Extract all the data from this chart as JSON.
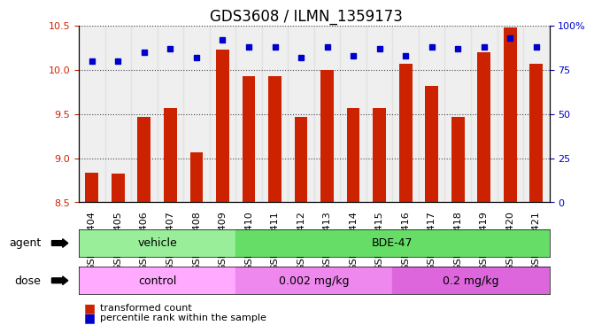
{
  "title": "GDS3608 / ILMN_1359173",
  "categories": [
    "GSM496404",
    "GSM496405",
    "GSM496406",
    "GSM496407",
    "GSM496408",
    "GSM496409",
    "GSM496410",
    "GSM496411",
    "GSM496412",
    "GSM496413",
    "GSM496414",
    "GSM496415",
    "GSM496416",
    "GSM496417",
    "GSM496418",
    "GSM496419",
    "GSM496420",
    "GSM496421"
  ],
  "bar_values": [
    8.83,
    8.82,
    9.47,
    9.57,
    9.07,
    10.23,
    9.93,
    9.93,
    9.47,
    10.0,
    9.57,
    9.57,
    10.07,
    9.82,
    9.47,
    10.2,
    10.48,
    10.07
  ],
  "dot_values": [
    10.1,
    10.1,
    10.18,
    10.2,
    10.12,
    10.3,
    10.25,
    10.25,
    10.08,
    10.25,
    10.12,
    10.2,
    10.15,
    10.25,
    10.2,
    10.25,
    10.3,
    10.25
  ],
  "ylim_left": [
    8.5,
    10.5
  ],
  "ylim_right": [
    0,
    100
  ],
  "yticks_left": [
    8.5,
    9.0,
    9.5,
    10.0,
    10.5
  ],
  "yticks_right": [
    0,
    25,
    50,
    75,
    100
  ],
  "bar_color": "#cc2200",
  "dot_color": "#0000cc",
  "bg_color": "#ffffff",
  "axis_label_color_left": "#cc2200",
  "axis_label_color_right": "#0000cc",
  "grid_color": "#000000",
  "agent_groups": [
    {
      "label": "vehicle",
      "start": 0,
      "end": 6,
      "color": "#99ee99"
    },
    {
      "label": "BDE-47",
      "start": 6,
      "end": 18,
      "color": "#66dd66"
    }
  ],
  "dose_groups": [
    {
      "label": "control",
      "start": 0,
      "end": 6,
      "color": "#ffaaff"
    },
    {
      "label": "0.002 mg/kg",
      "start": 6,
      "end": 12,
      "color": "#ee88ee"
    },
    {
      "label": "0.2 mg/kg",
      "start": 12,
      "end": 18,
      "color": "#dd66dd"
    }
  ],
  "legend_items": [
    {
      "color": "#cc2200",
      "label": "transformed count"
    },
    {
      "color": "#0000cc",
      "label": "percentile rank within the sample"
    }
  ],
  "title_fontsize": 12,
  "tick_fontsize": 8
}
